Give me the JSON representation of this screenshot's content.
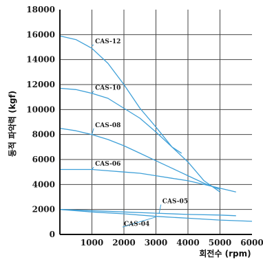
{
  "chart_data": {
    "type": "line",
    "xlabel": "회전수 (rpm)",
    "ylabel": "동적 파악력 (kgf)",
    "xlim": [
      0,
      6000
    ],
    "ylim": [
      0,
      18000
    ],
    "x_ticks": [
      "0",
      "1000",
      "2000",
      "3000",
      "4000",
      "5000",
      "6000"
    ],
    "y_ticks": [
      "0",
      "2000",
      "4000",
      "6000",
      "8000",
      "10000",
      "12000",
      "14000",
      "16000",
      "18000"
    ],
    "grid": true,
    "line_color": "#3fa0d8",
    "series": [
      {
        "name": "CAS-12",
        "x": [
          0,
          500,
          1000,
          1500,
          2000,
          2500,
          3000,
          3500,
          3800
        ],
        "y": [
          15900,
          15600,
          14900,
          13700,
          12000,
          10100,
          8600,
          7000,
          6500
        ]
      },
      {
        "name": "CAS-10",
        "x": [
          0,
          500,
          1000,
          1500,
          2000,
          2500,
          3000,
          3500,
          4000,
          4500,
          5000
        ],
        "y": [
          11700,
          11600,
          11300,
          10900,
          10100,
          9300,
          8200,
          7000,
          5800,
          4300,
          3400
        ]
      },
      {
        "name": "CAS-08",
        "x": [
          0,
          500,
          1000,
          1500,
          2000,
          2500,
          3000,
          3500,
          4000,
          4500,
          5000
        ],
        "y": [
          8500,
          8300,
          8000,
          7600,
          7100,
          6500,
          5900,
          5300,
          4700,
          4100,
          3600
        ]
      },
      {
        "name": "CAS-06",
        "x": [
          0,
          500,
          1000,
          1500,
          2000,
          2500,
          3000,
          3500,
          4000,
          4500,
          5000,
          5500
        ],
        "y": [
          5200,
          5200,
          5200,
          5100,
          5000,
          4900,
          4700,
          4500,
          4300,
          4000,
          3700,
          3400
        ]
      },
      {
        "name": "CAS-05",
        "x": [
          0,
          1000,
          2000,
          3000,
          4000,
          5000,
          5500
        ],
        "y": [
          2000,
          1900,
          1800,
          1700,
          1600,
          1550,
          1500
        ]
      },
      {
        "name": "CAS-04",
        "x": [
          0,
          1000,
          2000,
          3000,
          4000,
          5000,
          6000
        ],
        "y": [
          2000,
          1800,
          1650,
          1450,
          1300,
          1150,
          1050
        ]
      }
    ],
    "labels": [
      {
        "text": "CAS-12",
        "x": 1100,
        "y": 15300,
        "lx": 1000,
        "ly": 15100
      },
      {
        "text": "CAS-10",
        "x": 1100,
        "y": 11600,
        "lx": 1000,
        "ly": 11300
      },
      {
        "text": "CAS-08",
        "x": 1100,
        "y": 8600,
        "lx": 1000,
        "ly": 8000
      },
      {
        "text": "CAS-06",
        "x": 1100,
        "y": 5500,
        "lx": 1000,
        "ly": 5200
      },
      {
        "text": "CAS-05",
        "x": 3200,
        "y": 2500,
        "lx": 3100,
        "ly": 1700
      },
      {
        "text": "CAS-04",
        "x": 2000,
        "y": 700,
        "lx": 3000,
        "ly": 1400
      }
    ]
  }
}
